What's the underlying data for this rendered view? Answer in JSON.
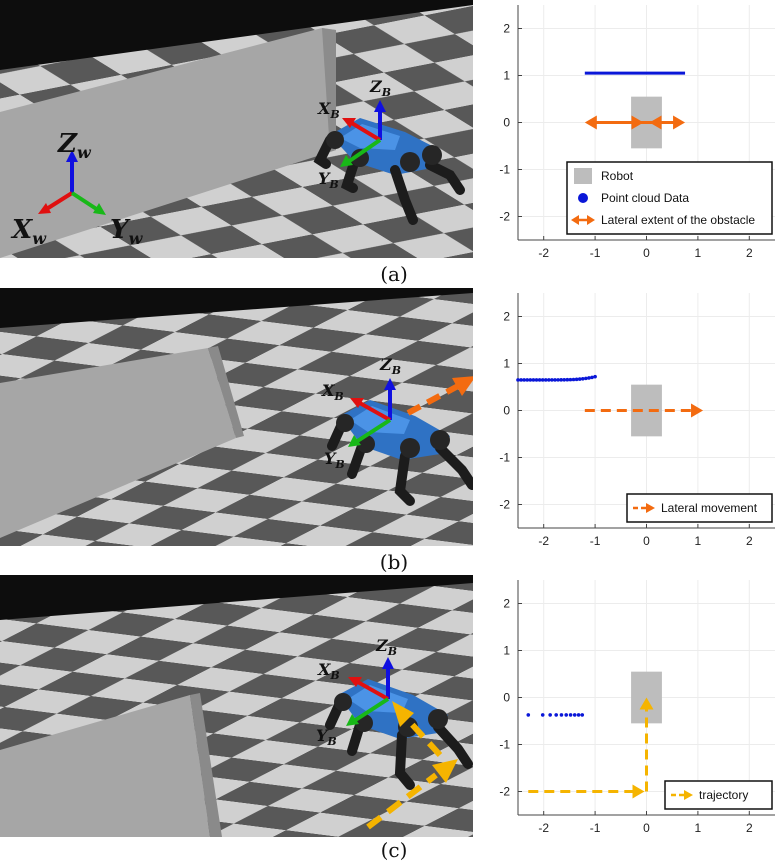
{
  "axis_labels": {
    "world_x": "X",
    "world_y": "Y",
    "world_z": "Z",
    "world_sub": "w",
    "body_x": "X",
    "body_y": "Y",
    "body_z": "Z",
    "body_sub": "B"
  },
  "panels": [
    {
      "caption": "(a)"
    },
    {
      "caption": "(b)"
    },
    {
      "caption": "(c)"
    }
  ],
  "colors": {
    "checker_dark": "#585858",
    "checker_light": "#d0d0d0",
    "wall": "#a6a6a6",
    "robot_body": "#2f72c4",
    "axis_x": "#e01010",
    "axis_y": "#18b818",
    "axis_z": "#1010e0",
    "point_cloud": "#0a17d8",
    "lateral_extent": "#f36b10",
    "lateral_movement": "#f36b10",
    "trajectory": "#f5b400",
    "robot_box": "#bdbdbd"
  },
  "chart_data": [
    {
      "type": "scatter",
      "xlim": [
        -2.5,
        2.5
      ],
      "ylim": [
        -2.5,
        2.5
      ],
      "xticks": [
        -2,
        -1,
        0,
        1,
        2
      ],
      "yticks": [
        -2,
        -1,
        0,
        1,
        2
      ],
      "grid": true,
      "legend_position": "bottom-right",
      "robot_box": {
        "x": [
          -0.3,
          0.3
        ],
        "y": [
          -0.55,
          0.55
        ]
      },
      "point_cloud": {
        "x_start": -1.2,
        "x_end": 0.75,
        "y": 1.05
      },
      "lateral_extent": {
        "x": [
          -1.2,
          0.75
        ],
        "y": 0
      },
      "legend": [
        {
          "label": "Robot",
          "symbol": "gray-box"
        },
        {
          "label": "Point cloud Data",
          "symbol": "blue-dot"
        },
        {
          "label": "Lateral extent of the obstacle",
          "symbol": "orange-double-arrow"
        }
      ]
    },
    {
      "type": "scatter",
      "xlim": [
        -2.5,
        2.5
      ],
      "ylim": [
        -2.5,
        2.5
      ],
      "xticks": [
        -2,
        -1,
        0,
        1,
        2
      ],
      "yticks": [
        -2,
        -1,
        0,
        1,
        2
      ],
      "grid": true,
      "legend_position": "bottom-right",
      "robot_box": {
        "x": [
          -0.3,
          0.3
        ],
        "y": [
          -0.55,
          0.55
        ]
      },
      "point_cloud": {
        "x_start": -2.5,
        "x_end": -1.0,
        "y_start": 0.65,
        "y_end": 0.72
      },
      "lateral_movement": {
        "x": [
          -1.2,
          1.1
        ],
        "y": 0
      },
      "legend": [
        {
          "label": "Lateral movement",
          "symbol": "orange-dashed-arrow"
        }
      ]
    },
    {
      "type": "scatter",
      "xlim": [
        -2.5,
        2.5
      ],
      "ylim": [
        -2.5,
        2.5
      ],
      "xticks": [
        -2,
        -1,
        0,
        1,
        2
      ],
      "yticks": [
        -2,
        -1,
        0,
        1,
        2
      ],
      "grid": true,
      "legend_position": "bottom-right",
      "robot_box": {
        "x": [
          -0.3,
          0.3
        ],
        "y": [
          -0.55,
          0.55
        ]
      },
      "point_cloud": {
        "x_start": -2.3,
        "x_end": -1.25,
        "y": -0.37
      },
      "trajectory": {
        "x": [
          -2.3,
          0,
          0
        ],
        "y": [
          -2.0,
          -2.0,
          0
        ]
      },
      "legend": [
        {
          "label": "trajectory",
          "symbol": "yellow-dashed-arrow"
        }
      ]
    }
  ]
}
